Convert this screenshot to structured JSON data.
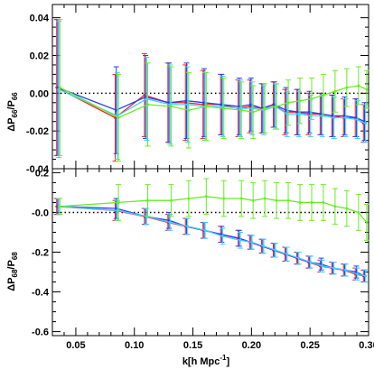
{
  "chart_data": [
    {
      "type": "line",
      "ylabel_main": "ΔP",
      "ylabel_sub": "66",
      "ylabel_den_main": "P",
      "ylabel_den_sub": "66",
      "ylim": [
        -0.04,
        0.047
      ],
      "yticks": [
        0.04,
        0.02,
        0.0,
        -0.02,
        -0.04
      ],
      "ytick_labels": [
        "0.04",
        "0.02",
        "0.00",
        "-0.02",
        "-0.04"
      ],
      "reference_line": 0.0,
      "x": [
        0.035,
        0.085,
        0.11,
        0.13,
        0.145,
        0.16,
        0.175,
        0.19,
        0.2,
        0.21,
        0.22,
        0.23,
        0.24,
        0.25,
        0.26,
        0.27,
        0.28,
        0.29,
        0.297
      ],
      "series": [
        {
          "color": "#ff2020",
          "values": [
            0.003,
            -0.013,
            -0.001,
            -0.005,
            -0.005,
            -0.006,
            -0.006,
            -0.008,
            -0.007,
            -0.008,
            -0.006,
            -0.01,
            -0.01,
            -0.011,
            -0.011,
            -0.012,
            -0.013,
            -0.013,
            -0.016
          ],
          "err": [
            0.036,
            0.023,
            0.022,
            0.021,
            0.02,
            0.018,
            0.016,
            0.015,
            0.014,
            0.013,
            0.012,
            0.012,
            0.012,
            0.011,
            0.011,
            0.011,
            0.01,
            0.01,
            0.01
          ]
        },
        {
          "color": "#2040ff",
          "values": [
            0.003,
            -0.009,
            -0.002,
            -0.005,
            -0.004,
            -0.005,
            -0.006,
            -0.007,
            -0.006,
            -0.008,
            -0.006,
            -0.009,
            -0.01,
            -0.01,
            -0.011,
            -0.012,
            -0.012,
            -0.013,
            -0.015
          ],
          "err": [
            0.036,
            0.023,
            0.022,
            0.021,
            0.02,
            0.018,
            0.016,
            0.015,
            0.014,
            0.013,
            0.012,
            0.012,
            0.012,
            0.011,
            0.011,
            0.011,
            0.01,
            0.01,
            0.01
          ]
        },
        {
          "color": "#40d0ff",
          "values": [
            0.002,
            -0.012,
            -0.003,
            -0.006,
            -0.006,
            -0.007,
            -0.007,
            -0.008,
            -0.008,
            -0.009,
            -0.007,
            -0.011,
            -0.011,
            -0.012,
            -0.012,
            -0.013,
            -0.013,
            -0.014,
            -0.016
          ],
          "err": [
            0.036,
            0.023,
            0.022,
            0.021,
            0.02,
            0.018,
            0.016,
            0.015,
            0.014,
            0.013,
            0.012,
            0.012,
            0.012,
            0.011,
            0.011,
            0.011,
            0.01,
            0.01,
            0.01
          ]
        },
        {
          "color": "#66ee22",
          "values": [
            0.003,
            -0.013,
            -0.006,
            -0.007,
            -0.009,
            -0.007,
            -0.008,
            -0.009,
            -0.01,
            -0.008,
            -0.007,
            -0.005,
            -0.004,
            -0.003,
            -0.001,
            0.001,
            0.003,
            0.004,
            0.002
          ],
          "err": [
            0.036,
            0.023,
            0.022,
            0.021,
            0.02,
            0.018,
            0.016,
            0.015,
            0.014,
            0.013,
            0.012,
            0.012,
            0.012,
            0.011,
            0.011,
            0.011,
            0.01,
            0.01,
            0.01
          ]
        }
      ]
    },
    {
      "type": "line",
      "xlabel_main": "k[h Mpc",
      "xlabel_sup": "-1",
      "xlabel_end": "]",
      "ylabel_main": "ΔP",
      "ylabel_sub": "68",
      "ylabel_den_main": "P",
      "ylabel_den_sub": "68",
      "xlim": [
        0.03,
        0.3
      ],
      "ylim": [
        -0.62,
        0.22
      ],
      "xticks": [
        0.05,
        0.1,
        0.15,
        0.2,
        0.25,
        0.3
      ],
      "xtick_labels": [
        "0.05",
        "0.10",
        "0.15",
        "0.20",
        "0.25",
        "0.30"
      ],
      "yticks": [
        0.2,
        0.0,
        -0.2,
        -0.4,
        -0.6
      ],
      "ytick_labels": [
        "0.2",
        "-0.0",
        "-0.2",
        "-0.4",
        "-0.6"
      ],
      "reference_line": 0.0,
      "x": [
        0.035,
        0.085,
        0.11,
        0.13,
        0.145,
        0.16,
        0.175,
        0.19,
        0.2,
        0.21,
        0.22,
        0.23,
        0.24,
        0.25,
        0.26,
        0.27,
        0.28,
        0.29,
        0.297
      ],
      "series": [
        {
          "color": "#ff2020",
          "values": [
            0.03,
            0.01,
            -0.02,
            -0.05,
            -0.07,
            -0.09,
            -0.11,
            -0.13,
            -0.15,
            -0.17,
            -0.19,
            -0.21,
            -0.23,
            -0.25,
            -0.27,
            -0.28,
            -0.29,
            -0.31,
            -0.32
          ],
          "err": [
            0.04,
            0.05,
            0.04,
            0.04,
            0.04,
            0.04,
            0.04,
            0.04,
            0.035,
            0.035,
            0.035,
            0.035,
            0.03,
            0.03,
            0.03,
            0.03,
            0.03,
            0.03,
            0.03
          ]
        },
        {
          "color": "#2040ff",
          "values": [
            0.03,
            0.02,
            -0.02,
            -0.04,
            -0.07,
            -0.09,
            -0.11,
            -0.13,
            -0.15,
            -0.17,
            -0.19,
            -0.21,
            -0.23,
            -0.25,
            -0.26,
            -0.28,
            -0.29,
            -0.3,
            -0.32
          ],
          "err": [
            0.04,
            0.05,
            0.04,
            0.04,
            0.04,
            0.04,
            0.04,
            0.04,
            0.035,
            0.035,
            0.035,
            0.035,
            0.03,
            0.03,
            0.03,
            0.03,
            0.03,
            0.03,
            0.03
          ]
        },
        {
          "color": "#40d0ff",
          "values": [
            0.03,
            0.01,
            -0.02,
            -0.05,
            -0.07,
            -0.09,
            -0.12,
            -0.14,
            -0.15,
            -0.17,
            -0.19,
            -0.21,
            -0.23,
            -0.25,
            -0.27,
            -0.28,
            -0.29,
            -0.31,
            -0.32
          ],
          "err": [
            0.04,
            0.05,
            0.04,
            0.04,
            0.04,
            0.04,
            0.04,
            0.04,
            0.035,
            0.035,
            0.035,
            0.035,
            0.03,
            0.03,
            0.03,
            0.03,
            0.03,
            0.03,
            0.03
          ]
        },
        {
          "color": "#66ee22",
          "values": [
            0.03,
            0.05,
            0.06,
            0.06,
            0.07,
            0.08,
            0.07,
            0.07,
            0.06,
            0.07,
            0.06,
            0.06,
            0.05,
            0.05,
            0.05,
            0.03,
            0.02,
            0.0,
            -0.05
          ],
          "err": [
            0.04,
            0.09,
            0.08,
            0.08,
            0.09,
            0.09,
            0.09,
            0.09,
            0.09,
            0.09,
            0.09,
            0.09,
            0.09,
            0.09,
            0.09,
            0.09,
            0.09,
            0.09,
            0.09
          ]
        }
      ]
    }
  ]
}
